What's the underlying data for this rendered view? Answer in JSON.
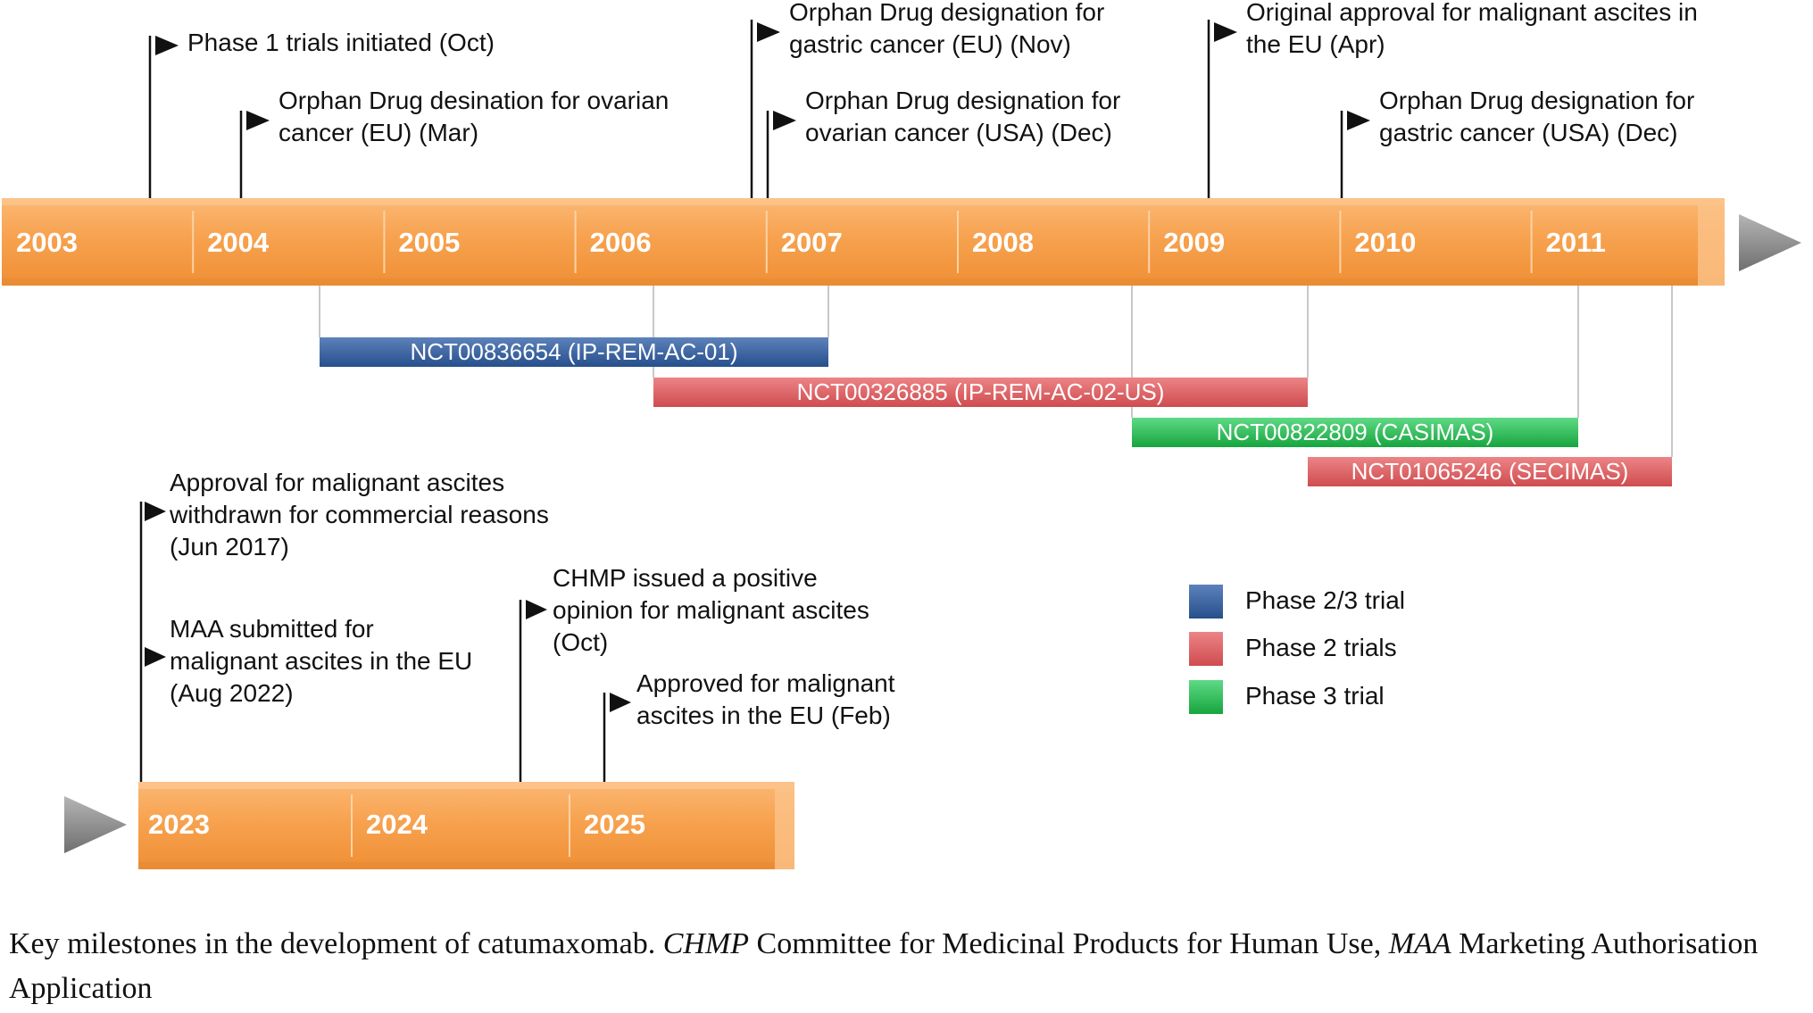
{
  "upper_timeline": {
    "years": [
      "2003",
      "2004",
      "2005",
      "2006",
      "2007",
      "2008",
      "2009",
      "2010",
      "2011"
    ]
  },
  "lower_timeline": {
    "years": [
      "2023",
      "2024",
      "2025"
    ]
  },
  "upper_milestones": [
    {
      "id": "phase1-trials",
      "text": "Phase 1 trials initiated (Oct)"
    },
    {
      "id": "odd-ovarian-eu",
      "text": "Orphan Drug desination for ovarian\ncancer (EU) (Mar)"
    },
    {
      "id": "odd-gastric-eu",
      "text": "Orphan Drug designation for\ngastric cancer (EU) (Nov)"
    },
    {
      "id": "odd-ovarian-usa",
      "text": "Orphan Drug designation for\novarian cancer (USA) (Dec)"
    },
    {
      "id": "original-approval-eu",
      "text": "Original approval for malignant ascites in\nthe EU (Apr)"
    },
    {
      "id": "odd-gastric-usa",
      "text": "Orphan Drug designation for\ngastric cancer (USA) (Dec)"
    }
  ],
  "lower_milestones": [
    {
      "id": "approval-withdrawn",
      "text": "Approval for malignant ascites\nwithdrawn for commercial reasons\n(Jun 2017)"
    },
    {
      "id": "maa-submitted",
      "text": "MAA submitted for\nmalignant ascites in the EU\n(Aug 2022)"
    },
    {
      "id": "chmp-positive-opinion",
      "text": "CHMP issued a positive\nopinion for malignant ascites\n(Oct)"
    },
    {
      "id": "approved-eu",
      "text": "Approved for malignant\nascites in the EU (Feb)"
    }
  ],
  "trials": [
    {
      "id": "nct00836654",
      "label": "NCT00836654 (IP-REM-AC-01)",
      "phase": "phase-2-3"
    },
    {
      "id": "nct00326885",
      "label": "NCT00326885 (IP-REM-AC-02-US)",
      "phase": "phase-2"
    },
    {
      "id": "nct00822809",
      "label": "NCT00822809 (CASIMAS)",
      "phase": "phase-3"
    },
    {
      "id": "nct01065246",
      "label": "NCT01065246 (SECIMAS)",
      "phase": "phase-2"
    }
  ],
  "legend": [
    {
      "phase": "phase-2-3",
      "label": "Phase 2/3 trial",
      "color": "#2f5a97"
    },
    {
      "phase": "phase-2",
      "label": "Phase 2 trials",
      "color": "#d9585a"
    },
    {
      "phase": "phase-3",
      "label": "Phase 3 trial",
      "color": "#1fb84a"
    }
  ],
  "colors": {
    "timeline_bar": "#f7a24f",
    "timeline_bar_light": "#fbc38a",
    "arrow_gray": "#8c8c8c"
  },
  "caption": {
    "intro": "Key milestones in the development of catumaxomab. ",
    "abbr1": "CHMP",
    "def1": " Committee for Medicinal Products for Human Use, ",
    "abbr2": "MAA",
    "def2": " Marketing Authorisation Application"
  }
}
